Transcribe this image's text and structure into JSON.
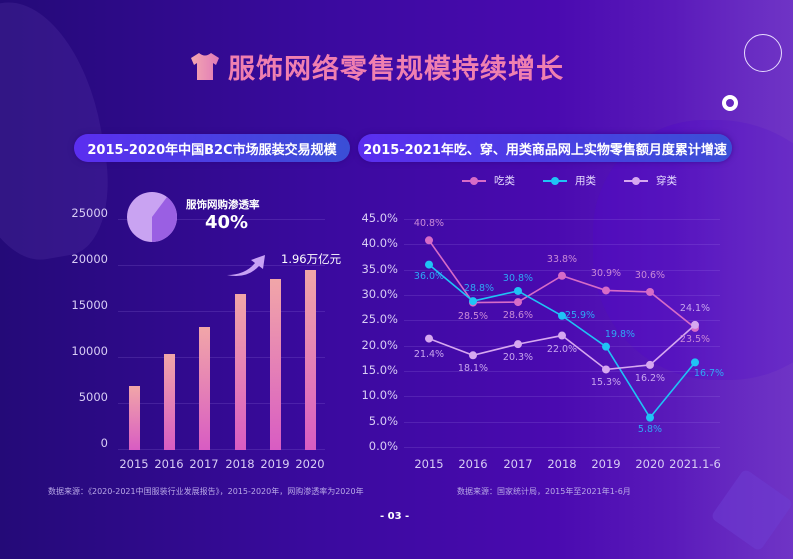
{
  "title": "服饰网络零售规模持续增长",
  "page_number": "- 03 -",
  "left_panel": {
    "header": "2015-2020年中国B2C市场服装交易规模",
    "pie_label": "服饰网购渗透率",
    "pie_value": "40%",
    "total_annotation": "1.96万亿元",
    "source": "数据来源：《2020-2021中国服装行业发展报告》，2015-2020年，网购渗透率为2020年"
  },
  "right_panel": {
    "header": "2015-2021年吃、穿、用类商品网上实物零售额月度累计增速",
    "legend": [
      {
        "name": "吃类",
        "color": "#d76bc7"
      },
      {
        "name": "用类",
        "color": "#1fc3f5"
      },
      {
        "name": "穿类",
        "color": "#d6a8f0"
      }
    ],
    "source": "数据来源：国家统计局，2015年至2021年1-6月"
  },
  "colors": {
    "title": "#f07fb0",
    "bar_top": "#f1a6a8",
    "bar_bottom": "#d85cc3",
    "eat": "#d76bc7",
    "use": "#1fc3f5",
    "wear": "#d6a8f0"
  },
  "chart_data": [
    {
      "type": "bar",
      "title": "2015-2020年中国B2C市场服装交易规模",
      "categories": [
        "2015",
        "2016",
        "2017",
        "2018",
        "2019",
        "2020"
      ],
      "values": [
        7000,
        10400,
        13400,
        17000,
        18600,
        19600
      ],
      "xlabel": "",
      "ylabel": "",
      "ylim": [
        0,
        25000
      ],
      "yticks": [
        "0",
        "5000",
        "10000",
        "15000",
        "20000",
        "25000"
      ],
      "grid": true,
      "annotations": [
        "1.96万亿元",
        "服饰网购渗透率 40%"
      ],
      "inset_pie": {
        "label": "服饰网购渗透率",
        "values": [
          40,
          60
        ],
        "display": "40%"
      }
    },
    {
      "type": "line",
      "title": "2015-2021年吃、穿、用类商品网上实物零售额月度累计增速",
      "x": [
        "2015",
        "2016",
        "2017",
        "2018",
        "2019",
        "2020",
        "2021.1-6"
      ],
      "ylim": [
        0,
        45
      ],
      "yticks": [
        "0.0%",
        "5.0%",
        "10.0%",
        "15.0%",
        "20.0%",
        "25.0%",
        "30.0%",
        "35.0%",
        "40.0%",
        "45.0%"
      ],
      "grid": true,
      "legend_position": "top",
      "series": [
        {
          "name": "吃类",
          "values": [
            40.8,
            28.5,
            28.6,
            33.8,
            30.9,
            30.6,
            23.5
          ],
          "labels": [
            "40.8%",
            "28.5%",
            "28.6%",
            "33.8%",
            "30.9%",
            "30.6%",
            "23.5%"
          ]
        },
        {
          "name": "用类",
          "values": [
            36.0,
            28.8,
            30.8,
            25.9,
            19.8,
            5.8,
            16.7
          ],
          "labels": [
            "36.0%",
            "28.8%",
            "30.8%",
            "25.9%",
            "19.8%",
            "5.8%",
            "16.7%"
          ]
        },
        {
          "name": "穿类",
          "values": [
            21.4,
            18.1,
            20.3,
            22.0,
            15.3,
            16.2,
            24.1
          ],
          "labels": [
            "21.4%",
            "18.1%",
            "20.3%",
            "22.0%",
            "15.3%",
            "16.2%",
            "24.1%"
          ]
        }
      ]
    }
  ]
}
